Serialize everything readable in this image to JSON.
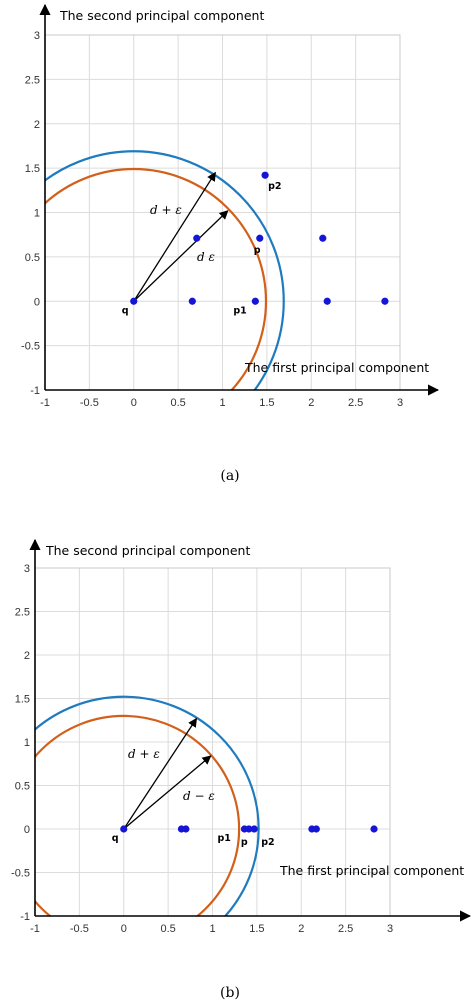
{
  "chart_data": [
    {
      "type": "scatter",
      "caption": "(a)",
      "xlabel": "The first principal component",
      "ylabel": "The second principal component",
      "xlim": [
        -1,
        3
      ],
      "ylim": [
        -1,
        3
      ],
      "xticks": [
        "-1",
        "-0.5",
        "0",
        "0.5",
        "1",
        "1.5",
        "2",
        "2.5",
        "3"
      ],
      "yticks": [
        "-1",
        "-0.5",
        "0",
        "0.5",
        "1",
        "1.5",
        "2",
        "2.5",
        "3"
      ],
      "grid": true,
      "colors": {
        "points": "#1515d6",
        "inner_circle": "#d2601a",
        "outer_circle": "#1e7bbf",
        "grid": "#dcdcdc"
      },
      "points": [
        {
          "x": 0,
          "y": 0,
          "label": "q"
        },
        {
          "x": 0.66,
          "y": 0
        },
        {
          "x": 0.71,
          "y": 0.71
        },
        {
          "x": 1.37,
          "y": 0,
          "label": "p1"
        },
        {
          "x": 1.42,
          "y": 0.71,
          "label": "p"
        },
        {
          "x": 1.48,
          "y": 1.42,
          "label": "p2"
        },
        {
          "x": 2.13,
          "y": 0.71
        },
        {
          "x": 2.18,
          "y": 0
        },
        {
          "x": 2.83,
          "y": 0
        }
      ],
      "circles": [
        {
          "center": [
            0,
            0
          ],
          "radius": 1.49,
          "color": "inner"
        },
        {
          "center": [
            0,
            0
          ],
          "radius": 1.69,
          "color": "outer"
        }
      ],
      "vectors": [
        {
          "from": [
            0,
            0
          ],
          "to": [
            0.92,
            1.45
          ],
          "label": "d + ε"
        },
        {
          "from": [
            0,
            0
          ],
          "to": [
            1.06,
            1.02
          ],
          "label": "d    ε"
        }
      ]
    },
    {
      "type": "scatter",
      "caption": "(b)",
      "xlabel": "The first principal component",
      "ylabel": "The second principal component",
      "xlim": [
        -1,
        3
      ],
      "ylim": [
        -1,
        3
      ],
      "xticks": [
        "-1",
        "-0.5",
        "0",
        "0.5",
        "1",
        "1.5",
        "2",
        "2.5",
        "3"
      ],
      "yticks": [
        "-1",
        "-0.5",
        "0",
        "0.5",
        "1",
        "1.5",
        "2",
        "2.5",
        "3"
      ],
      "grid": true,
      "colors": {
        "points": "#1515d6",
        "inner_circle": "#d2601a",
        "outer_circle": "#1e7bbf",
        "grid": "#dcdcdc"
      },
      "points": [
        {
          "x": 0,
          "y": 0,
          "label": "q"
        },
        {
          "x": 0.65,
          "y": 0
        },
        {
          "x": 0.7,
          "y": 0
        },
        {
          "x": 1.36,
          "y": 0,
          "label": "p1"
        },
        {
          "x": 1.41,
          "y": 0,
          "label": "p"
        },
        {
          "x": 1.47,
          "y": 0,
          "label": "p2"
        },
        {
          "x": 2.12,
          "y": 0
        },
        {
          "x": 2.17,
          "y": 0
        },
        {
          "x": 2.82,
          "y": 0
        }
      ],
      "circles": [
        {
          "center": [
            0,
            0
          ],
          "radius": 1.3,
          "color": "inner"
        },
        {
          "center": [
            0,
            0
          ],
          "radius": 1.52,
          "color": "outer"
        }
      ],
      "vectors": [
        {
          "from": [
            0,
            0
          ],
          "to": [
            0.82,
            1.27
          ],
          "label": "d + ε"
        },
        {
          "from": [
            0,
            0
          ],
          "to": [
            0.98,
            0.84
          ],
          "label": "d − ε"
        }
      ]
    }
  ]
}
